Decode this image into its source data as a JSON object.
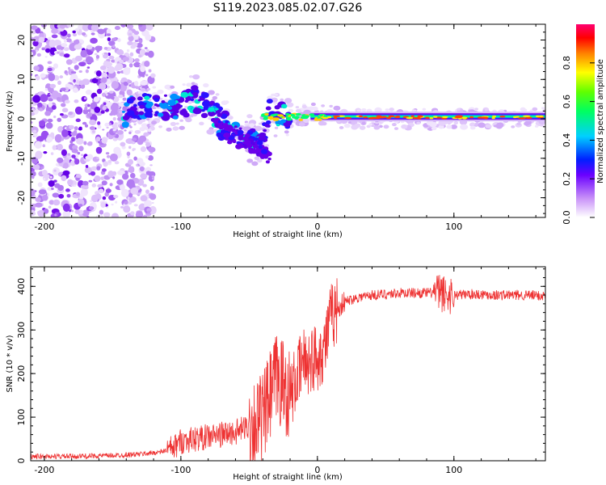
{
  "title": "S119.2023.085.02.07.G26",
  "chart_data": [
    {
      "type": "heatmap",
      "xlabel": "Height of straight line (km)",
      "ylabel": "Frequency (Hz)",
      "xlim": [
        -210,
        167
      ],
      "ylim": [
        -25,
        24
      ],
      "xticks": [
        -200,
        -100,
        0,
        100
      ],
      "yticks": [
        -20,
        -10,
        0,
        10,
        20
      ],
      "colorbar": {
        "label": "Normalized spectral amplitude",
        "ticks": [
          0.0,
          0.2,
          0.4,
          0.6,
          0.8
        ],
        "range": [
          0,
          1
        ],
        "colors": [
          "#ffffff",
          "#d8b4f8",
          "#a060f0",
          "#7a00e8",
          "#3a00ff",
          "#0050ff",
          "#00d8ff",
          "#00ff70",
          "#40ff00",
          "#ffff00",
          "#ff8000",
          "#ff0000",
          "#ff0060"
        ]
      },
      "ridge": [
        {
          "x": -140,
          "y": 3.5
        },
        {
          "x": -120,
          "y": 3.0
        },
        {
          "x": -100,
          "y": 3.0
        },
        {
          "x": -90,
          "y": 5.5
        },
        {
          "x": -80,
          "y": 3.0
        },
        {
          "x": -70,
          "y": -1.0
        },
        {
          "x": -60,
          "y": -3.0
        },
        {
          "x": -50,
          "y": -5.0
        },
        {
          "x": -42,
          "y": -7.0
        },
        {
          "x": -35,
          "y": 1.5
        },
        {
          "x": -20,
          "y": 0.5
        },
        {
          "x": 0,
          "y": 1.5
        },
        {
          "x": 20,
          "y": 0.0
        },
        {
          "x": 60,
          "y": 0.0
        },
        {
          "x": 100,
          "y": 0.0
        },
        {
          "x": 167,
          "y": 0.5
        }
      ]
    },
    {
      "type": "line",
      "xlabel": "Height of straight line (km)",
      "ylabel": "SNR (10 * v/v)",
      "xlim": [
        -210,
        167
      ],
      "ylim": [
        0,
        445
      ],
      "xticks": [
        -200,
        -100,
        0,
        100
      ],
      "yticks": [
        0,
        100,
        200,
        300,
        400
      ],
      "series": [
        {
          "color": "#ee3333",
          "x": [
            -210,
            -180,
            -150,
            -130,
            -115,
            -105,
            -100,
            -90,
            -80,
            -70,
            -60,
            -50,
            -40,
            -35,
            -30,
            -25,
            -20,
            -15,
            -10,
            -5,
            0,
            5,
            10,
            15,
            20,
            30,
            40,
            50,
            60,
            70,
            80,
            90,
            95,
            100,
            110,
            120,
            130,
            140,
            150,
            167
          ],
          "y": [
            10,
            10,
            12,
            15,
            20,
            30,
            45,
            50,
            55,
            60,
            65,
            80,
            95,
            140,
            190,
            175,
            150,
            190,
            230,
            230,
            240,
            260,
            330,
            350,
            365,
            375,
            380,
            382,
            385,
            385,
            385,
            385,
            380,
            380,
            382,
            382,
            380,
            380,
            380,
            378
          ]
        }
      ]
    }
  ]
}
